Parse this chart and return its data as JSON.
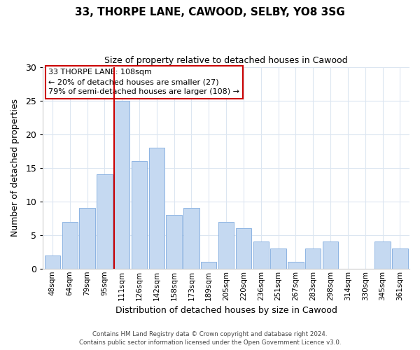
{
  "title": "33, THORPE LANE, CAWOOD, SELBY, YO8 3SG",
  "subtitle": "Size of property relative to detached houses in Cawood",
  "xlabel": "Distribution of detached houses by size in Cawood",
  "ylabel": "Number of detached properties",
  "bar_labels": [
    "48sqm",
    "64sqm",
    "79sqm",
    "95sqm",
    "111sqm",
    "126sqm",
    "142sqm",
    "158sqm",
    "173sqm",
    "189sqm",
    "205sqm",
    "220sqm",
    "236sqm",
    "251sqm",
    "267sqm",
    "283sqm",
    "298sqm",
    "314sqm",
    "330sqm",
    "345sqm",
    "361sqm"
  ],
  "bar_values": [
    2,
    7,
    9,
    14,
    25,
    16,
    18,
    8,
    9,
    1,
    7,
    6,
    4,
    3,
    1,
    3,
    4,
    0,
    0,
    4,
    3
  ],
  "bar_color": "#c5d9f1",
  "bar_edge_color": "#8db4e2",
  "highlight_index": 4,
  "highlight_line_color": "#cc0000",
  "ylim": [
    0,
    30
  ],
  "yticks": [
    0,
    5,
    10,
    15,
    20,
    25,
    30
  ],
  "annotation_title": "33 THORPE LANE: 108sqm",
  "annotation_line1": "← 20% of detached houses are smaller (27)",
  "annotation_line2": "79% of semi-detached houses are larger (108) →",
  "annotation_box_color": "#ffffff",
  "annotation_box_edge": "#cc0000",
  "footer1": "Contains HM Land Registry data © Crown copyright and database right 2024.",
  "footer2": "Contains public sector information licensed under the Open Government Licence v3.0.",
  "background_color": "#ffffff",
  "grid_color": "#dce6f1"
}
